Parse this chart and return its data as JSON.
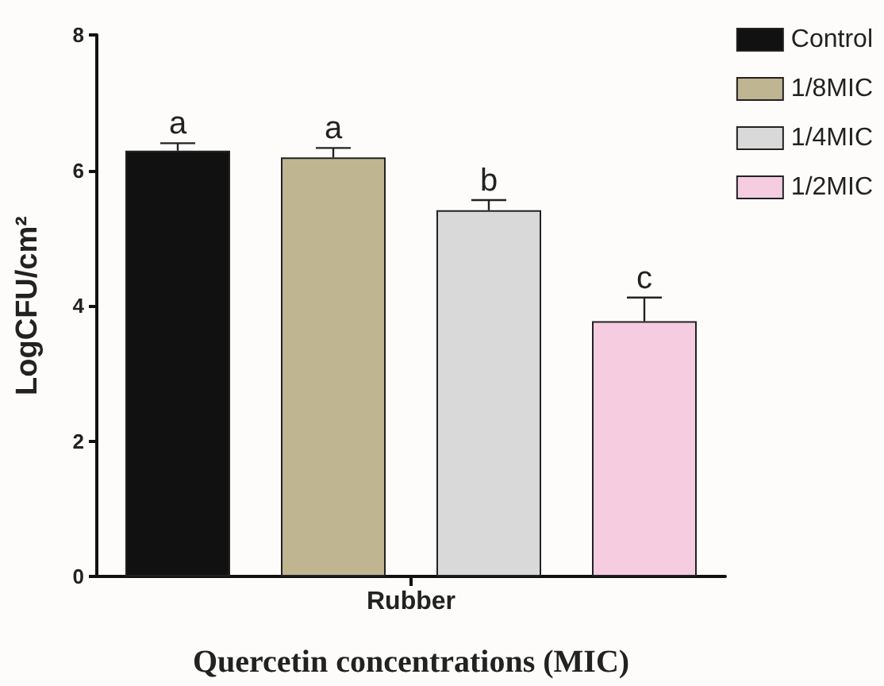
{
  "chart_data": {
    "type": "bar",
    "xlabel": "Quercetin concentrations (MIC)",
    "ylabel": "LogCFU/cm²",
    "categories": [
      "Rubber"
    ],
    "series": [
      {
        "name": "Control",
        "color": "#111111",
        "values": [
          6.29
        ],
        "errors": [
          0.11
        ],
        "value_labels": [
          "a"
        ]
      },
      {
        "name": "1/8MIC",
        "color": "#bfb591",
        "values": [
          6.19
        ],
        "errors": [
          0.14
        ],
        "value_labels": [
          "a"
        ]
      },
      {
        "name": "1/4MIC",
        "color": "#d9d9d9",
        "values": [
          5.41
        ],
        "errors": [
          0.15
        ],
        "value_labels": [
          "b"
        ]
      },
      {
        "name": "1/2MIC",
        "color": "#f6cce1",
        "values": [
          3.77
        ],
        "errors": [
          0.35
        ],
        "value_labels": [
          "c"
        ]
      }
    ],
    "ylim": [
      0,
      8
    ],
    "yticks": [
      0,
      2,
      4,
      6,
      8
    ],
    "grid": false,
    "legend": "top right"
  }
}
